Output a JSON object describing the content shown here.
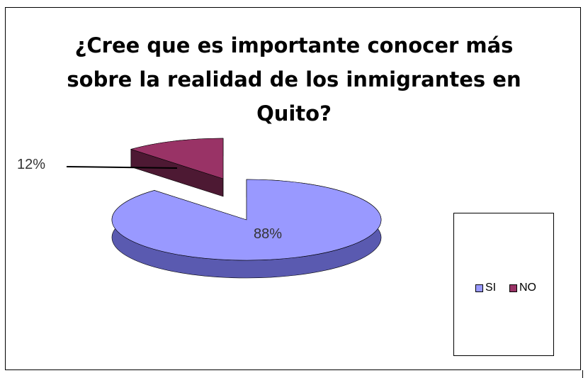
{
  "chart_data": {
    "type": "pie",
    "style": "3d-exploded",
    "title": [
      "¿Cree que es importante conocer más",
      "sobre la realidad de los inmigrantes en",
      "Quito?"
    ],
    "categories": [
      "SI",
      "NO"
    ],
    "values": [
      88,
      12
    ],
    "data_labels": [
      "88%",
      "12%"
    ],
    "legend_position": "right",
    "colors": {
      "SI": "#9999ff",
      "SI_side": "#5a5ab0",
      "NO": "#993366",
      "NO_side": "#4d1933"
    }
  }
}
